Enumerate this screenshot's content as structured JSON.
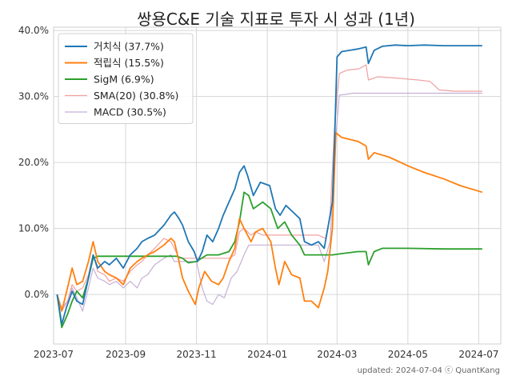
{
  "chart_data": {
    "type": "line",
    "title": "쌍용C&E 기술 지표로 투자 시 성과 (1년)",
    "xlabel": "",
    "ylabel": "",
    "x_range": [
      "2023-07-01",
      "2024-07-20"
    ],
    "ylim": [
      -7.5,
      40.5
    ],
    "y_ticks": [
      0,
      10,
      20,
      30,
      40
    ],
    "y_tick_labels": [
      "0.0%",
      "10.0%",
      "20.0%",
      "30.0%",
      "40.0%"
    ],
    "x_ticks": [
      "2023-07-01",
      "2023-09-01",
      "2023-11-01",
      "2024-01-01",
      "2024-03-01",
      "2024-05-01",
      "2024-07-01"
    ],
    "x_tick_labels": [
      "2023-07",
      "2023-09",
      "2023-11",
      "2024-01",
      "2024-03",
      "2024-05",
      "2024-07"
    ],
    "grid": true,
    "legend_position": "top-left",
    "footer": "updated: 2024-07-04 ⓒ QuantKang",
    "series": [
      {
        "name": "거치식 (37.7%)",
        "color": "#1f77b4",
        "points": [
          [
            "2023-07-04",
            0.0
          ],
          [
            "2023-07-08",
            -4.5
          ],
          [
            "2023-07-12",
            -2.0
          ],
          [
            "2023-07-17",
            0.5
          ],
          [
            "2023-07-21",
            -1.0
          ],
          [
            "2023-07-26",
            -1.5
          ],
          [
            "2023-07-31",
            2.5
          ],
          [
            "2023-08-04",
            6.0
          ],
          [
            "2023-08-08",
            4.0
          ],
          [
            "2023-08-14",
            5.0
          ],
          [
            "2023-08-18",
            4.5
          ],
          [
            "2023-08-24",
            5.5
          ],
          [
            "2023-08-30",
            4.0
          ],
          [
            "2023-09-05",
            6.0
          ],
          [
            "2023-09-11",
            7.0
          ],
          [
            "2023-09-15",
            8.0
          ],
          [
            "2023-09-20",
            8.5
          ],
          [
            "2023-09-26",
            9.0
          ],
          [
            "2023-10-04",
            10.5
          ],
          [
            "2023-10-10",
            12.0
          ],
          [
            "2023-10-13",
            12.5
          ],
          [
            "2023-10-17",
            11.5
          ],
          [
            "2023-10-20",
            10.5
          ],
          [
            "2023-10-25",
            8.0
          ],
          [
            "2023-10-30",
            6.5
          ],
          [
            "2023-11-02",
            5.0
          ],
          [
            "2023-11-06",
            6.5
          ],
          [
            "2023-11-10",
            9.0
          ],
          [
            "2023-11-15",
            8.0
          ],
          [
            "2023-11-20",
            10.0
          ],
          [
            "2023-11-24",
            12.0
          ],
          [
            "2023-11-29",
            14.0
          ],
          [
            "2023-12-04",
            16.0
          ],
          [
            "2023-12-08",
            18.5
          ],
          [
            "2023-12-12",
            19.5
          ],
          [
            "2023-12-15",
            18.0
          ],
          [
            "2023-12-20",
            15.0
          ],
          [
            "2023-12-26",
            17.0
          ],
          [
            "2024-01-03",
            16.5
          ],
          [
            "2024-01-08",
            13.0
          ],
          [
            "2024-01-12",
            12.0
          ],
          [
            "2024-01-17",
            13.5
          ],
          [
            "2024-01-23",
            12.5
          ],
          [
            "2024-01-29",
            11.5
          ],
          [
            "2024-02-02",
            8.0
          ],
          [
            "2024-02-08",
            7.5
          ],
          [
            "2024-02-14",
            8.0
          ],
          [
            "2024-02-19",
            7.0
          ],
          [
            "2024-02-22",
            10.0
          ],
          [
            "2024-02-26",
            14.0
          ],
          [
            "2024-02-28",
            24.0
          ],
          [
            "2024-03-01",
            36.0
          ],
          [
            "2024-03-05",
            36.8
          ],
          [
            "2024-03-12",
            37.0
          ],
          [
            "2024-03-19",
            37.2
          ],
          [
            "2024-03-26",
            37.5
          ],
          [
            "2024-03-28",
            35.0
          ],
          [
            "2024-04-02",
            37.0
          ],
          [
            "2024-04-09",
            37.6
          ],
          [
            "2024-04-20",
            37.8
          ],
          [
            "2024-05-01",
            37.7
          ],
          [
            "2024-05-15",
            37.8
          ],
          [
            "2024-06-01",
            37.7
          ],
          [
            "2024-06-15",
            37.7
          ],
          [
            "2024-07-04",
            37.7
          ]
        ]
      },
      {
        "name": "적립식 (15.5%)",
        "color": "#ff7f0e",
        "points": [
          [
            "2023-07-04",
            0.0
          ],
          [
            "2023-07-08",
            -2.5
          ],
          [
            "2023-07-13",
            1.0
          ],
          [
            "2023-07-17",
            4.0
          ],
          [
            "2023-07-21",
            1.5
          ],
          [
            "2023-07-26",
            2.0
          ],
          [
            "2023-07-31",
            5.0
          ],
          [
            "2023-08-04",
            8.0
          ],
          [
            "2023-08-08",
            5.0
          ],
          [
            "2023-08-14",
            3.5
          ],
          [
            "2023-08-18",
            3.0
          ],
          [
            "2023-08-24",
            2.5
          ],
          [
            "2023-08-30",
            1.5
          ],
          [
            "2023-09-05",
            4.0
          ],
          [
            "2023-09-11",
            5.0
          ],
          [
            "2023-09-15",
            5.5
          ],
          [
            "2023-09-20",
            6.0
          ],
          [
            "2023-09-26",
            6.5
          ],
          [
            "2023-10-04",
            7.5
          ],
          [
            "2023-10-10",
            8.5
          ],
          [
            "2023-10-13",
            8.0
          ],
          [
            "2023-10-17",
            5.0
          ],
          [
            "2023-10-20",
            2.5
          ],
          [
            "2023-10-25",
            0.5
          ],
          [
            "2023-10-31",
            -1.5
          ],
          [
            "2023-11-03",
            1.0
          ],
          [
            "2023-11-08",
            3.5
          ],
          [
            "2023-11-14",
            2.0
          ],
          [
            "2023-11-20",
            1.5
          ],
          [
            "2023-11-24",
            2.5
          ],
          [
            "2023-11-29",
            5.0
          ],
          [
            "2023-12-04",
            7.0
          ],
          [
            "2023-12-08",
            11.5
          ],
          [
            "2023-12-12",
            10.0
          ],
          [
            "2023-12-18",
            8.0
          ],
          [
            "2023-12-22",
            9.5
          ],
          [
            "2023-12-28",
            10.0
          ],
          [
            "2024-01-04",
            8.0
          ],
          [
            "2024-01-08",
            4.0
          ],
          [
            "2024-01-11",
            1.5
          ],
          [
            "2024-01-16",
            5.0
          ],
          [
            "2024-01-22",
            3.0
          ],
          [
            "2024-01-29",
            2.5
          ],
          [
            "2024-02-02",
            -1.0
          ],
          [
            "2024-02-08",
            -1.0
          ],
          [
            "2024-02-14",
            -2.0
          ],
          [
            "2024-02-19",
            1.0
          ],
          [
            "2024-02-22",
            3.5
          ],
          [
            "2024-02-26",
            10.0
          ],
          [
            "2024-02-29",
            24.5
          ],
          [
            "2024-03-05",
            23.8
          ],
          [
            "2024-03-12",
            23.5
          ],
          [
            "2024-03-19",
            23.2
          ],
          [
            "2024-03-26",
            22.5
          ],
          [
            "2024-03-28",
            20.5
          ],
          [
            "2024-04-02",
            21.5
          ],
          [
            "2024-04-15",
            20.8
          ],
          [
            "2024-05-01",
            19.5
          ],
          [
            "2024-05-15",
            18.5
          ],
          [
            "2024-06-01",
            17.5
          ],
          [
            "2024-06-15",
            16.5
          ],
          [
            "2024-07-04",
            15.5
          ]
        ]
      },
      {
        "name": "SigM (6.9%)",
        "color": "#2ca02c",
        "points": [
          [
            "2023-07-04",
            0.0
          ],
          [
            "2023-07-08",
            -5.0
          ],
          [
            "2023-07-13",
            -3.0
          ],
          [
            "2023-07-17",
            -1.0
          ],
          [
            "2023-07-21",
            0.5
          ],
          [
            "2023-07-26",
            -0.5
          ],
          [
            "2023-07-31",
            2.5
          ],
          [
            "2023-08-04",
            5.5
          ],
          [
            "2023-08-08",
            5.8
          ],
          [
            "2023-08-20",
            5.8
          ],
          [
            "2023-09-01",
            5.8
          ],
          [
            "2023-09-15",
            5.8
          ],
          [
            "2023-09-26",
            5.8
          ],
          [
            "2023-10-04",
            5.8
          ],
          [
            "2023-10-15",
            5.8
          ],
          [
            "2023-10-20",
            5.5
          ],
          [
            "2023-10-25",
            4.8
          ],
          [
            "2023-11-01",
            5.0
          ],
          [
            "2023-11-10",
            6.0
          ],
          [
            "2023-11-20",
            6.0
          ],
          [
            "2023-11-29",
            6.5
          ],
          [
            "2023-12-04",
            8.0
          ],
          [
            "2023-12-08",
            11.0
          ],
          [
            "2023-12-12",
            15.5
          ],
          [
            "2023-12-16",
            15.0
          ],
          [
            "2023-12-20",
            13.0
          ],
          [
            "2023-12-28",
            14.0
          ],
          [
            "2024-01-04",
            13.0
          ],
          [
            "2024-01-10",
            10.0
          ],
          [
            "2024-01-16",
            11.0
          ],
          [
            "2024-01-22",
            9.0
          ],
          [
            "2024-01-29",
            7.5
          ],
          [
            "2024-02-02",
            6.0
          ],
          [
            "2024-02-10",
            6.0
          ],
          [
            "2024-02-20",
            6.0
          ],
          [
            "2024-02-26",
            6.0
          ],
          [
            "2024-03-05",
            6.2
          ],
          [
            "2024-03-19",
            6.5
          ],
          [
            "2024-03-26",
            6.5
          ],
          [
            "2024-03-28",
            4.5
          ],
          [
            "2024-04-02",
            6.5
          ],
          [
            "2024-04-09",
            7.0
          ],
          [
            "2024-05-01",
            7.0
          ],
          [
            "2024-06-01",
            6.9
          ],
          [
            "2024-07-04",
            6.9
          ]
        ]
      },
      {
        "name": "SMA(20) (30.8%)",
        "color": "#f0a0a0",
        "points": [
          [
            "2023-07-04",
            0.0
          ],
          [
            "2023-07-08",
            -2.5
          ],
          [
            "2023-07-13",
            -1.0
          ],
          [
            "2023-07-17",
            1.5
          ],
          [
            "2023-07-21",
            0.5
          ],
          [
            "2023-07-26",
            1.0
          ],
          [
            "2023-07-31",
            3.0
          ],
          [
            "2023-08-04",
            6.0
          ],
          [
            "2023-08-08",
            3.5
          ],
          [
            "2023-08-14",
            3.0
          ],
          [
            "2023-08-18",
            2.0
          ],
          [
            "2023-08-24",
            2.5
          ],
          [
            "2023-08-30",
            2.0
          ],
          [
            "2023-09-05",
            3.5
          ],
          [
            "2023-09-11",
            4.5
          ],
          [
            "2023-09-15",
            5.0
          ],
          [
            "2023-09-20",
            6.0
          ],
          [
            "2023-09-26",
            7.0
          ],
          [
            "2023-10-04",
            8.5
          ],
          [
            "2023-10-10",
            8.0
          ],
          [
            "2023-10-13",
            7.0
          ],
          [
            "2023-10-17",
            5.5
          ],
          [
            "2023-10-20",
            5.5
          ],
          [
            "2023-10-25",
            5.5
          ],
          [
            "2023-11-01",
            5.5
          ],
          [
            "2023-11-10",
            5.5
          ],
          [
            "2023-11-20",
            5.5
          ],
          [
            "2023-11-29",
            5.5
          ],
          [
            "2023-12-04",
            6.0
          ],
          [
            "2023-12-08",
            9.5
          ],
          [
            "2023-12-12",
            10.0
          ],
          [
            "2023-12-18",
            9.0
          ],
          [
            "2023-12-22",
            9.5
          ],
          [
            "2023-12-28",
            9.0
          ],
          [
            "2024-01-04",
            9.0
          ],
          [
            "2024-01-10",
            9.0
          ],
          [
            "2024-01-20",
            9.0
          ],
          [
            "2024-01-29",
            9.0
          ],
          [
            "2024-02-05",
            9.0
          ],
          [
            "2024-02-14",
            9.0
          ],
          [
            "2024-02-20",
            8.5
          ],
          [
            "2024-02-24",
            12.0
          ],
          [
            "2024-02-28",
            26.0
          ],
          [
            "2024-03-03",
            33.5
          ],
          [
            "2024-03-10",
            34.0
          ],
          [
            "2024-03-20",
            34.2
          ],
          [
            "2024-03-26",
            34.8
          ],
          [
            "2024-03-28",
            32.5
          ],
          [
            "2024-04-05",
            33.0
          ],
          [
            "2024-04-20",
            32.8
          ],
          [
            "2024-05-10",
            32.5
          ],
          [
            "2024-05-20",
            32.3
          ],
          [
            "2024-05-28",
            31.0
          ],
          [
            "2024-06-10",
            30.8
          ],
          [
            "2024-07-04",
            30.8
          ]
        ]
      },
      {
        "name": "MACD (30.5%)",
        "color": "#c5b0d5",
        "points": [
          [
            "2023-07-04",
            0.0
          ],
          [
            "2023-07-08",
            -2.0
          ],
          [
            "2023-07-13",
            -1.0
          ],
          [
            "2023-07-17",
            1.0
          ],
          [
            "2023-07-21",
            -0.5
          ],
          [
            "2023-07-26",
            -2.5
          ],
          [
            "2023-07-31",
            1.0
          ],
          [
            "2023-08-04",
            4.0
          ],
          [
            "2023-08-08",
            2.5
          ],
          [
            "2023-08-14",
            2.0
          ],
          [
            "2023-08-18",
            1.5
          ],
          [
            "2023-08-24",
            2.0
          ],
          [
            "2023-08-30",
            1.0
          ],
          [
            "2023-09-05",
            2.0
          ],
          [
            "2023-09-11",
            1.0
          ],
          [
            "2023-09-15",
            2.5
          ],
          [
            "2023-09-20",
            3.0
          ],
          [
            "2023-09-26",
            4.5
          ],
          [
            "2023-10-04",
            5.5
          ],
          [
            "2023-10-10",
            6.0
          ],
          [
            "2023-10-13",
            5.0
          ],
          [
            "2023-10-17",
            5.0
          ],
          [
            "2023-10-25",
            5.0
          ],
          [
            "2023-11-01",
            5.0
          ],
          [
            "2023-11-06",
            1.0
          ],
          [
            "2023-11-10",
            -1.0
          ],
          [
            "2023-11-15",
            -1.5
          ],
          [
            "2023-11-20",
            0.0
          ],
          [
            "2023-11-25",
            -0.5
          ],
          [
            "2023-12-01",
            2.5
          ],
          [
            "2023-12-06",
            3.5
          ],
          [
            "2023-12-12",
            6.0
          ],
          [
            "2023-12-16",
            7.5
          ],
          [
            "2023-12-20",
            7.5
          ],
          [
            "2024-01-01",
            7.5
          ],
          [
            "2024-01-15",
            7.5
          ],
          [
            "2024-01-29",
            7.5
          ],
          [
            "2024-02-05",
            7.5
          ],
          [
            "2024-02-14",
            7.5
          ],
          [
            "2024-02-19",
            5.0
          ],
          [
            "2024-02-24",
            8.0
          ],
          [
            "2024-02-28",
            22.0
          ],
          [
            "2024-03-03",
            30.2
          ],
          [
            "2024-03-15",
            30.5
          ],
          [
            "2024-04-01",
            30.5
          ],
          [
            "2024-05-01",
            30.5
          ],
          [
            "2024-06-01",
            30.5
          ],
          [
            "2024-07-04",
            30.5
          ]
        ]
      }
    ]
  }
}
